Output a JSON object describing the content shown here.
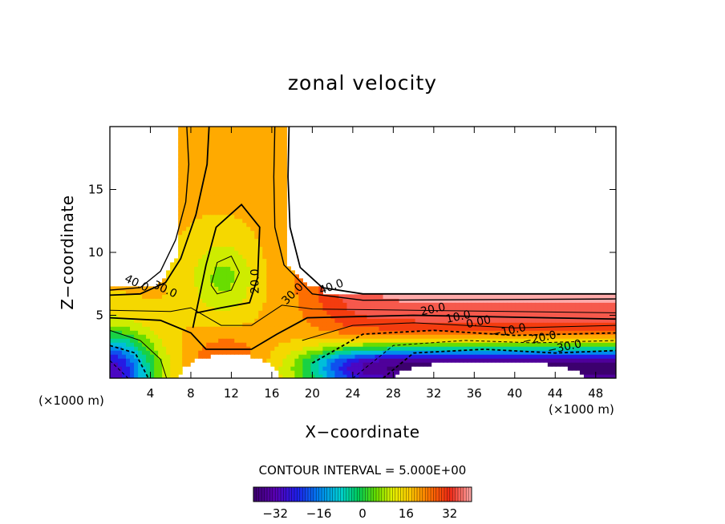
{
  "chart_data": {
    "type": "contour",
    "title": "zonal velocity",
    "xlabel": "X−coordinate",
    "ylabel": "Z−coordinate",
    "x_unit_left": "(×1000 m)",
    "x_unit_right": "(×1000 m)",
    "xlim": [
      0,
      50
    ],
    "ylim": [
      0,
      20
    ],
    "x_ticks": [
      4,
      8,
      12,
      16,
      20,
      24,
      28,
      32,
      36,
      40,
      44,
      48
    ],
    "y_ticks": [
      5,
      10,
      15
    ],
    "contour_labels": [
      {
        "text": "40.0",
        "x": 2.5,
        "z": 7.3,
        "rot": -25
      },
      {
        "text": "30.0",
        "x": 5.3,
        "z": 6.8,
        "rot": -25
      },
      {
        "text": "20.0",
        "x": 14.7,
        "z": 7.7,
        "rot": 90
      },
      {
        "text": "30.0",
        "x": 18.3,
        "z": 6.5,
        "rot": 45
      },
      {
        "text": "40.0",
        "x": 22.0,
        "z": 7.0,
        "rot": 20
      },
      {
        "text": "20.0",
        "x": 32.0,
        "z": 5.2,
        "rot": 12
      },
      {
        "text": "10.0",
        "x": 34.5,
        "z": 4.6,
        "rot": 12
      },
      {
        "text": "0.00",
        "x": 36.5,
        "z": 4.2,
        "rot": 12
      },
      {
        "text": "−10.0",
        "x": 39.5,
        "z": 3.5,
        "rot": 12
      },
      {
        "text": "−20.0",
        "x": 42.5,
        "z": 2.9,
        "rot": 12
      },
      {
        "text": "−30.0",
        "x": 45.0,
        "z": 2.2,
        "rot": 12
      }
    ],
    "contour_interval_text": "CONTOUR INTERVAL = 5.000E+00",
    "colorbar": {
      "range": [
        -40,
        40
      ],
      "ticks": [
        "−32",
        "−16",
        "0",
        "16",
        "32"
      ],
      "tick_values": [
        -32,
        -16,
        0,
        16,
        32
      ]
    },
    "grid": false
  }
}
